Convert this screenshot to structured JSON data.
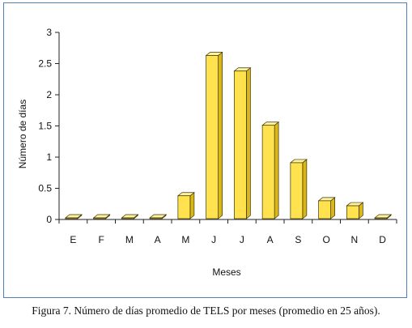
{
  "chart_data": {
    "type": "bar",
    "title": "",
    "xlabel": "Meses",
    "ylabel": "Número de días",
    "categories": [
      "E",
      "F",
      "M",
      "A",
      "M",
      "J",
      "J",
      "A",
      "S",
      "O",
      "N",
      "D"
    ],
    "values": [
      0.0,
      0.0,
      0.0,
      0.0,
      0.38,
      2.63,
      2.38,
      1.51,
      0.91,
      0.3,
      0.22,
      0.0
    ],
    "ylim": [
      0,
      3
    ],
    "yticks": [
      0,
      0.5,
      1,
      1.5,
      2,
      2.5,
      3
    ],
    "ytick_labels": [
      "0",
      "0.5",
      "1",
      "1.5",
      "2",
      "2.5",
      "3"
    ],
    "grid": false,
    "legend": "none",
    "bar_style": "3d",
    "colors": {
      "bar_front": "#ffe24d",
      "bar_side": "#d9b61a",
      "bar_top": "#fff2a0",
      "bar_outline": "#3a3300",
      "axis": "#222222",
      "frame": "#4f7fb8"
    }
  },
  "caption": "Figura 7. Número de días promedio de TELS por meses (promedio en 25 años)."
}
